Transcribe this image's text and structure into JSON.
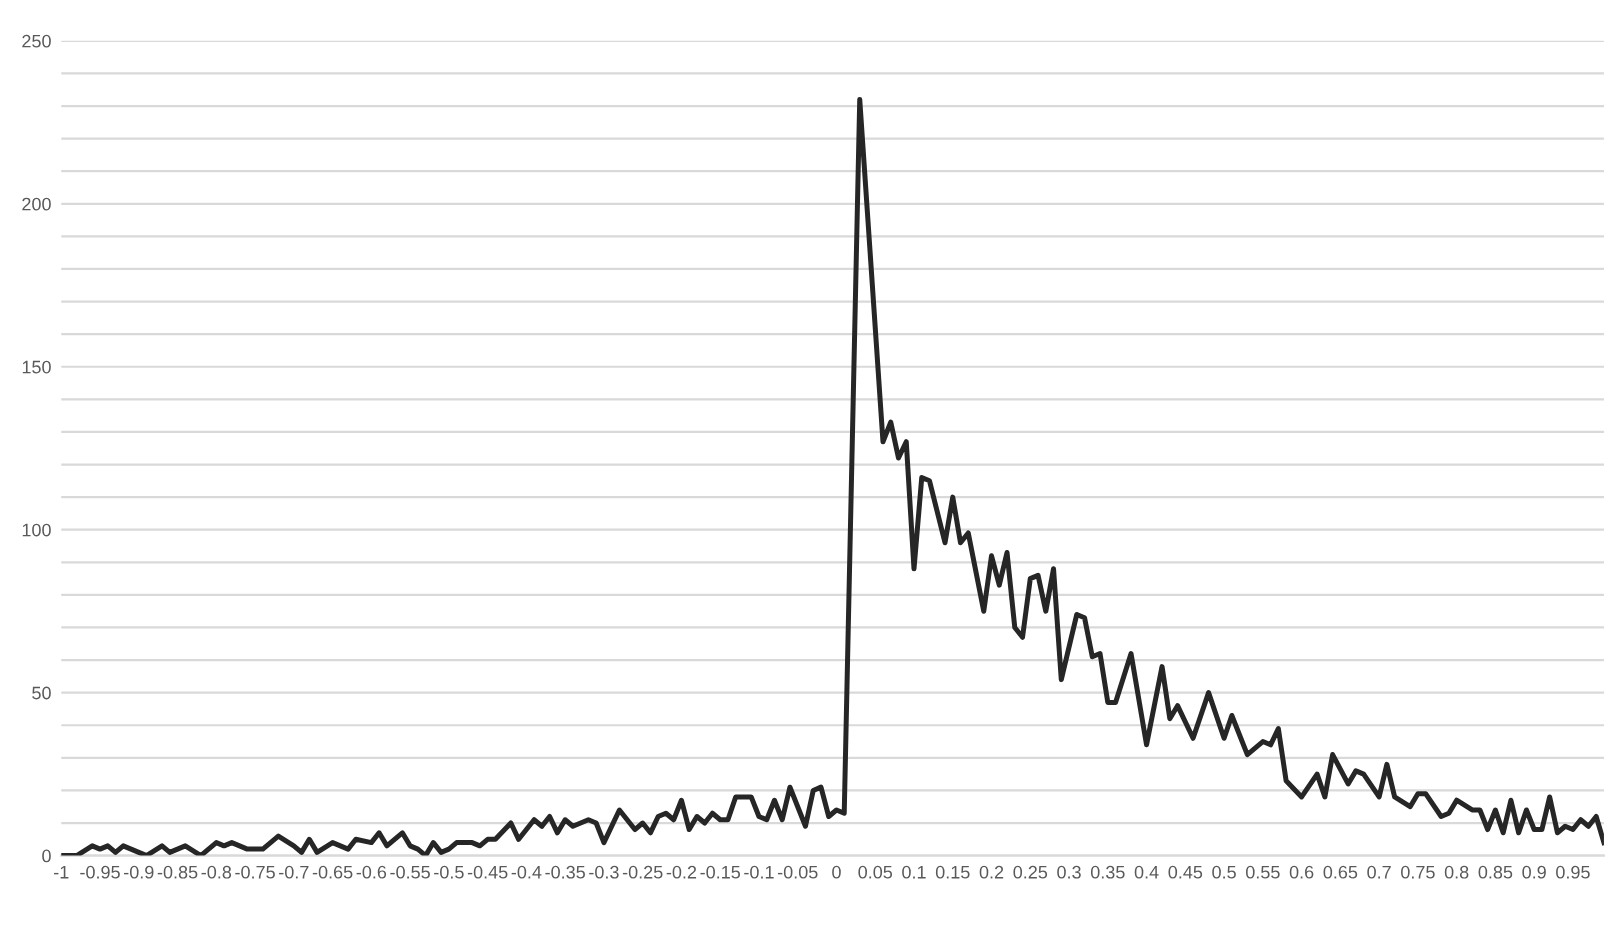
{
  "chart_data": {
    "type": "line",
    "series": [
      {
        "color": "#262626",
        "x": [
          -1,
          -0.98,
          -0.96,
          -0.95,
          -0.94,
          -0.93,
          -0.92,
          -0.9,
          -0.89,
          -0.87,
          -0.86,
          -0.84,
          -0.82,
          -0.8,
          -0.79,
          -0.78,
          -0.76,
          -0.74,
          -0.72,
          -0.7,
          -0.69,
          -0.68,
          -0.67,
          -0.65,
          -0.63,
          -0.62,
          -0.6,
          -0.59,
          -0.58,
          -0.56,
          -0.55,
          -0.54,
          -0.53,
          -0.52,
          -0.51,
          -0.5,
          -0.49,
          -0.47,
          -0.46,
          -0.45,
          -0.44,
          -0.42,
          -0.41,
          -0.39,
          -0.38,
          -0.37,
          -0.36,
          -0.35,
          -0.34,
          -0.32,
          -0.31,
          -0.3,
          -0.28,
          -0.27,
          -0.26,
          -0.25,
          -0.24,
          -0.23,
          -0.22,
          -0.21,
          -0.2,
          -0.19,
          -0.18,
          -0.17,
          -0.16,
          -0.15,
          -0.14,
          -0.13,
          -0.12,
          -0.11,
          -0.1,
          -0.09,
          -0.08,
          -0.07,
          -0.06,
          -0.05,
          -0.04,
          -0.03,
          -0.02,
          -0.01,
          0,
          0.01,
          0.03,
          0.06,
          0.07,
          0.08,
          0.09,
          0.1,
          0.11,
          0.12,
          0.14,
          0.15,
          0.16,
          0.17,
          0.19,
          0.2,
          0.21,
          0.22,
          0.23,
          0.24,
          0.25,
          0.26,
          0.27,
          0.28,
          0.29,
          0.31,
          0.32,
          0.33,
          0.34,
          0.35,
          0.36,
          0.38,
          0.4,
          0.42,
          0.43,
          0.44,
          0.46,
          0.48,
          0.5,
          0.51,
          0.53,
          0.55,
          0.56,
          0.57,
          0.58,
          0.6,
          0.62,
          0.63,
          0.64,
          0.66,
          0.67,
          0.68,
          0.7,
          0.71,
          0.72,
          0.74,
          0.75,
          0.76,
          0.78,
          0.79,
          0.8,
          0.82,
          0.83,
          0.84,
          0.85,
          0.86,
          0.87,
          0.88,
          0.89,
          0.9,
          0.91,
          0.92,
          0.93,
          0.94,
          0.95,
          0.96,
          0.97,
          0.98,
          0.99
        ],
        "values": [
          0,
          0,
          3,
          2,
          3,
          1,
          3,
          1,
          0,
          3,
          1,
          3,
          0,
          4,
          3,
          4,
          2,
          2,
          6,
          3,
          1,
          5,
          1,
          4,
          2,
          5,
          4,
          7,
          3,
          7,
          3,
          2,
          0,
          4,
          1,
          2,
          4,
          4,
          3,
          5,
          5,
          10,
          5,
          11,
          9,
          12,
          7,
          11,
          9,
          11,
          10,
          4,
          14,
          11,
          8,
          10,
          7,
          12,
          13,
          11,
          17,
          8,
          12,
          10,
          13,
          11,
          11,
          18,
          18,
          18,
          12,
          11,
          17,
          11,
          21,
          15,
          9,
          20,
          21,
          12,
          14,
          13,
          232,
          127,
          133,
          122,
          127,
          88,
          116,
          115,
          96,
          110,
          96,
          99,
          75,
          92,
          83,
          93,
          70,
          67,
          85,
          86,
          75,
          88,
          54,
          74,
          73,
          61,
          62,
          47,
          47,
          62,
          34,
          58,
          42,
          46,
          36,
          50,
          36,
          43,
          31,
          35,
          34,
          39,
          23,
          18,
          25,
          18,
          31,
          22,
          26,
          25,
          18,
          28,
          18,
          15,
          19,
          19,
          12,
          13,
          17,
          14,
          14,
          8,
          14,
          7,
          17,
          7,
          14,
          8,
          8,
          18,
          7,
          9,
          8,
          11,
          9,
          12,
          4
        ]
      }
    ],
    "xlim": [
      -1,
      0.99
    ],
    "xticks": [
      -1,
      -0.95,
      -0.9,
      -0.85,
      -0.8,
      -0.75,
      -0.7,
      -0.65,
      -0.6,
      -0.55,
      -0.5,
      -0.45,
      -0.4,
      -0.35,
      -0.3,
      -0.25,
      -0.2,
      -0.15,
      -0.1,
      -0.05,
      0,
      0.05,
      0.1,
      0.15,
      0.2,
      0.25,
      0.3,
      0.35,
      0.4,
      0.45,
      0.5,
      0.55,
      0.6,
      0.65,
      0.7,
      0.75,
      0.8,
      0.85,
      0.9,
      0.95
    ],
    "ylim": [
      0,
      250
    ],
    "yticks": [
      0,
      {
        "value": 10,
        "label": null
      },
      {
        "value": 20,
        "label": null
      },
      {
        "value": 30,
        "label": null
      },
      {
        "value": 40,
        "label": null
      },
      50,
      {
        "value": 60,
        "label": null
      },
      {
        "value": 70,
        "label": null
      },
      {
        "value": 80,
        "label": null
      },
      {
        "value": 90,
        "label": null
      },
      100,
      {
        "value": 110,
        "label": null
      },
      {
        "value": 120,
        "label": null
      },
      {
        "value": 130,
        "label": null
      },
      {
        "value": 140,
        "label": null
      },
      150,
      {
        "value": 160,
        "label": null
      },
      {
        "value": 170,
        "label": null
      },
      {
        "value": 180,
        "label": null
      },
      {
        "value": 190,
        "label": null
      },
      200,
      {
        "value": 210,
        "label": null
      },
      {
        "value": 220,
        "label": null
      },
      {
        "value": 230,
        "label": null
      },
      {
        "value": 240,
        "label": null
      },
      250
    ],
    "grid": "y"
  }
}
